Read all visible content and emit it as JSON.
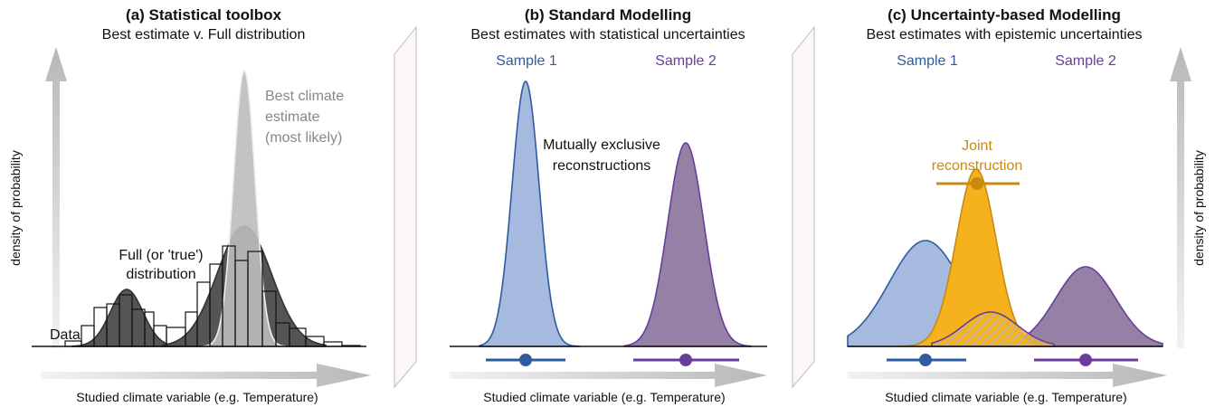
{
  "panels": [
    {
      "title": "(a) Statistical toolbox",
      "subtitle": "Best estimate v. Full distribution",
      "best_estimate": [
        "Best climate",
        "estimate",
        "(most likely)"
      ],
      "full_distribution": [
        "Full (or 'true')",
        "distribution"
      ],
      "data_label": "Data",
      "y_axis": "density of probability",
      "x_axis": "Studied climate variable (e.g. Temperature)"
    },
    {
      "title": "(b) Standard Modelling",
      "subtitle": "Best estimates with statistical uncertainties",
      "sample_1": "Sample 1",
      "sample_2": "Sample 2",
      "note": [
        "Mutually exclusive",
        "reconstructions"
      ],
      "x_axis": "Studied climate variable (e.g. Temperature)"
    },
    {
      "title": "(c) Uncertainty-based Modelling",
      "subtitle": "Best estimates with epistemic uncertainties",
      "sample_1": "Sample 1",
      "sample_2": "Sample 2",
      "joint": [
        "Joint",
        "reconstruction"
      ],
      "y_axis": "density of probability",
      "x_axis": "Studied climate variable (e.g. Temperature)"
    }
  ]
}
